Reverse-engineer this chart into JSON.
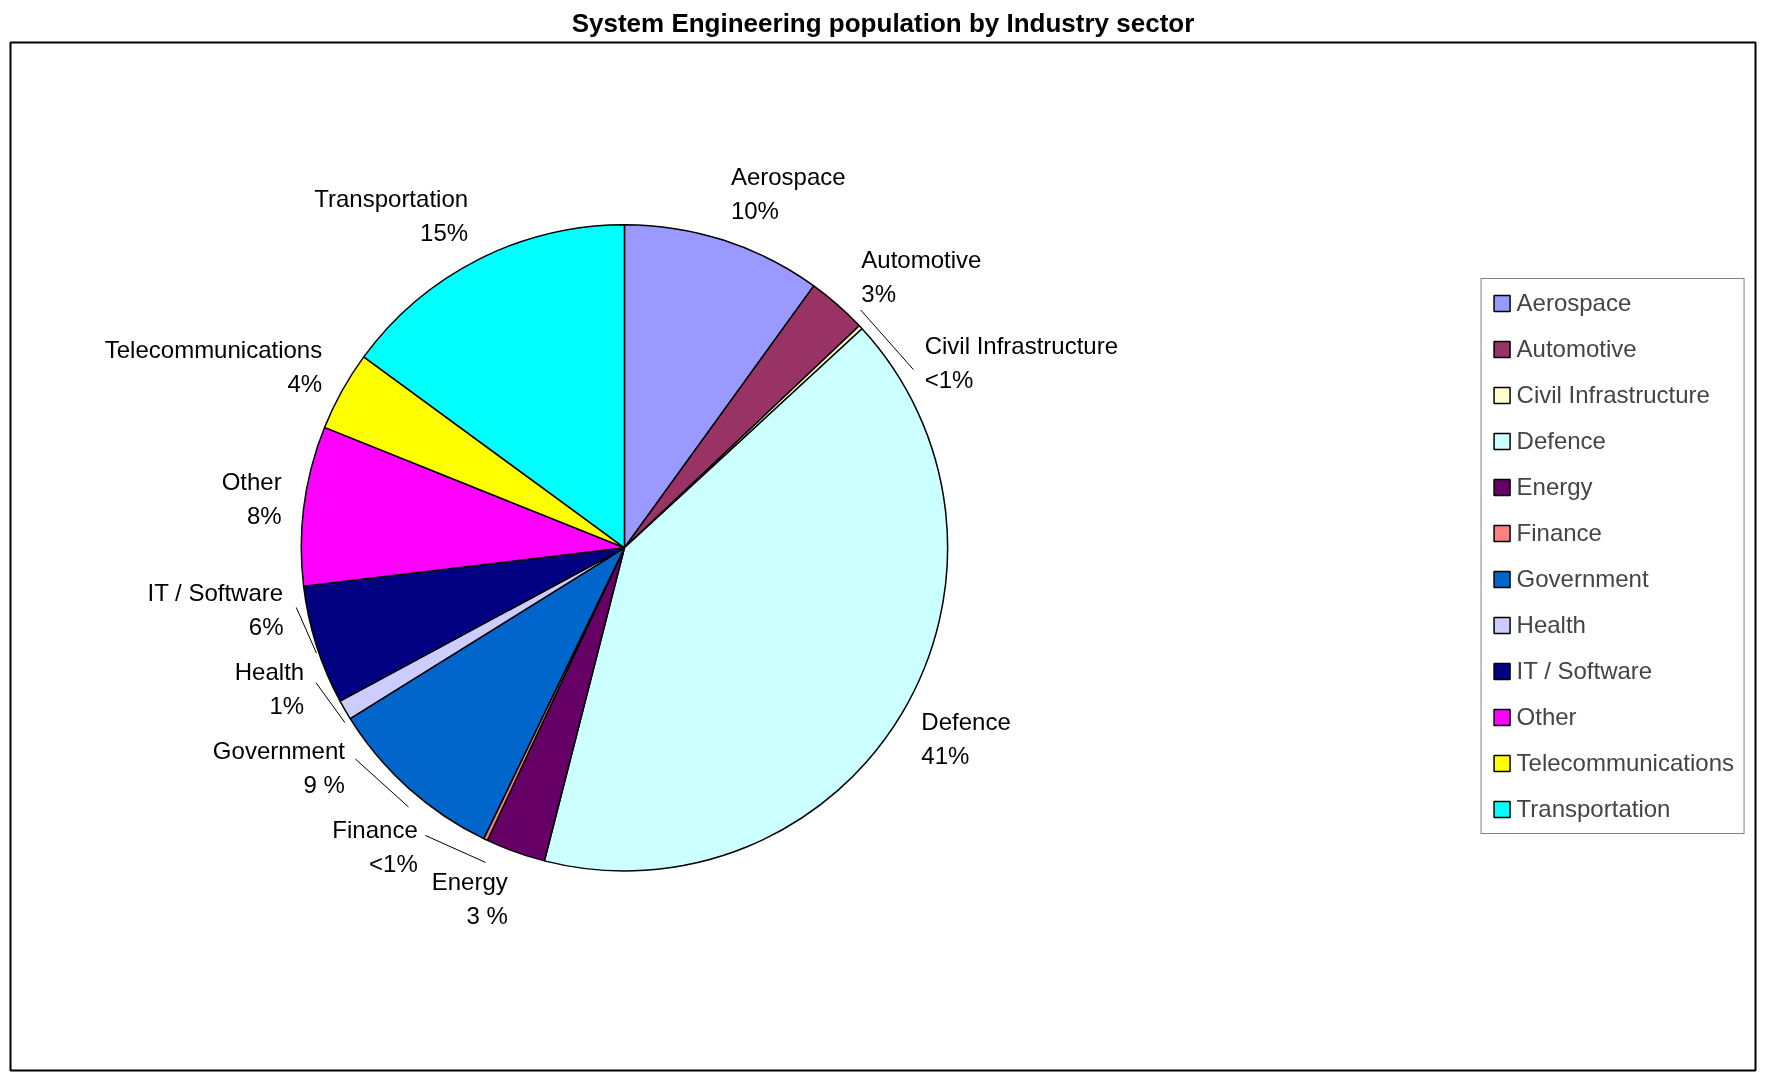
{
  "chart_data": {
    "type": "pie",
    "title": "System Engineering population by Industry sector",
    "categories": [
      "Aerospace",
      "Automotive",
      "Civil Infrastructure",
      "Defence",
      "Energy",
      "Finance",
      "Government",
      "Health",
      "IT / Software",
      "Other",
      "Telecommunications",
      "Transportation"
    ],
    "values": [
      10,
      3,
      0.2,
      41,
      3,
      0.2,
      9,
      1,
      6,
      8,
      4,
      15
    ],
    "value_labels": [
      "10%",
      "3%",
      "<1%",
      "41%",
      "3 %",
      "<1%",
      "9 %",
      "1%",
      "6%",
      "8%",
      "4%",
      "15%"
    ],
    "colors": [
      "#9999ff",
      "#993366",
      "#ffffcc",
      "#ccffff",
      "#660066",
      "#ff8080",
      "#0066cc",
      "#ccccff",
      "#000080",
      "#ff00ff",
      "#ffff00",
      "#00ffff"
    ],
    "legend": "right"
  }
}
